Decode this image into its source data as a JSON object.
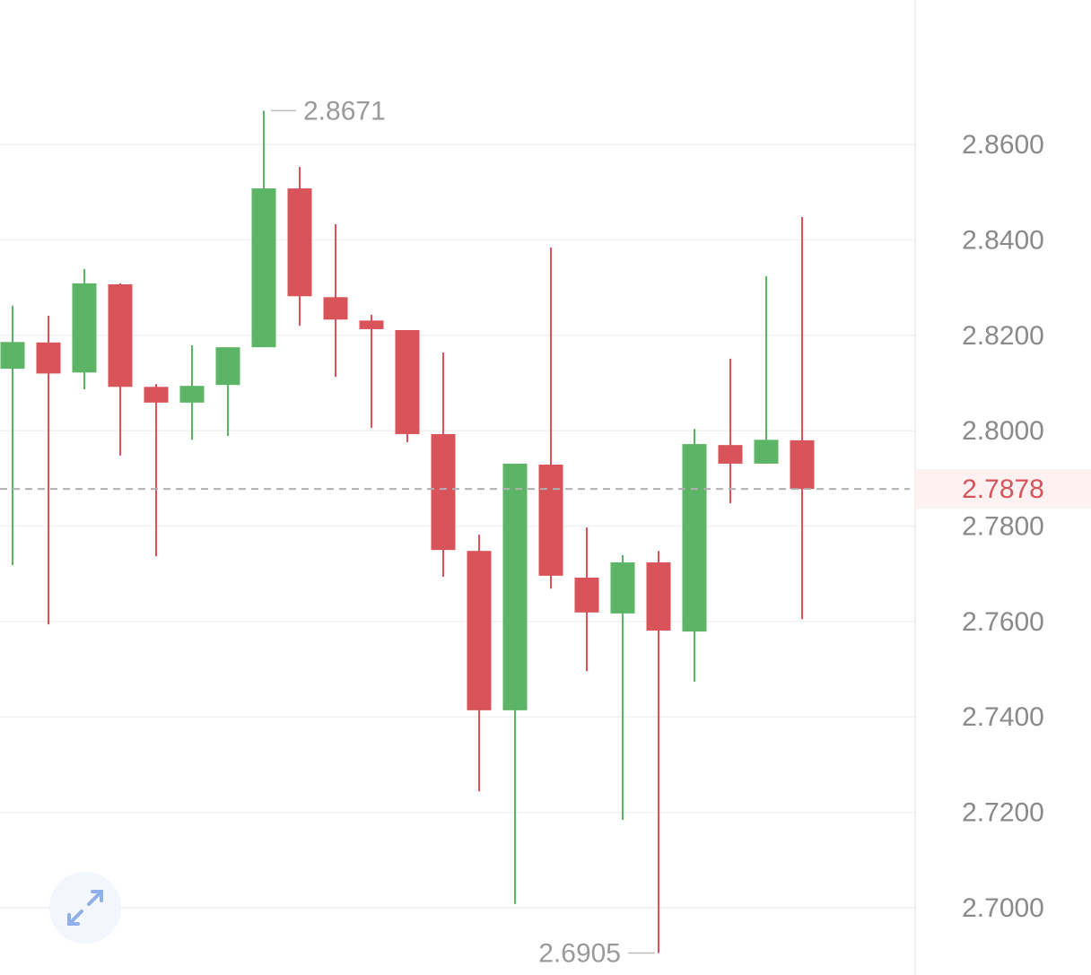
{
  "chart_data": {
    "type": "candlestick",
    "series": [
      {
        "up_color": "#5cb466",
        "down_color": "#d9535b",
        "open": [
          2.813,
          2.8185,
          2.8122,
          2.8307,
          2.8092,
          2.8059,
          2.8096,
          2.8175,
          2.8508,
          2.828,
          2.8231,
          2.8211,
          2.7993,
          2.7748,
          2.7414,
          2.7929,
          2.7692,
          2.7617,
          2.7724,
          2.7579,
          2.797,
          2.7931,
          2.798
        ],
        "high": [
          2.8262,
          2.8241,
          2.8339,
          2.8309,
          2.8098,
          2.8179,
          2.8175,
          2.8671,
          2.8553,
          2.8433,
          2.8243,
          2.8211,
          2.8164,
          2.7782,
          2.7931,
          2.8384,
          2.7797,
          2.7739,
          2.7748,
          2.8004,
          2.8151,
          2.8324,
          2.8448
        ],
        "low": [
          2.7718,
          2.7594,
          2.8087,
          2.7948,
          2.7737,
          2.7981,
          2.7989,
          2.8175,
          2.822,
          2.8113,
          2.8006,
          2.7976,
          2.7694,
          2.7244,
          2.7008,
          2.7669,
          2.7496,
          2.7184,
          2.6905,
          2.7474,
          2.7848,
          2.7931,
          2.7605
        ],
        "close": [
          2.8186,
          2.812,
          2.8309,
          2.8092,
          2.8059,
          2.8094,
          2.8175,
          2.8508,
          2.8282,
          2.8233,
          2.8213,
          2.7993,
          2.775,
          2.7414,
          2.7931,
          2.7696,
          2.7619,
          2.7724,
          2.7581,
          2.7972,
          2.7931,
          2.7981,
          2.7878
        ]
      }
    ],
    "ylim": [
      2.6859,
      2.8903
    ],
    "yticks": [
      {
        "value": 2.86,
        "label": "2.8600"
      },
      {
        "value": 2.84,
        "label": "2.8400"
      },
      {
        "value": 2.82,
        "label": "2.8200"
      },
      {
        "value": 2.8,
        "label": "2.8000"
      },
      {
        "value": 2.78,
        "label": "2.7800"
      },
      {
        "value": 2.76,
        "label": "2.7600"
      },
      {
        "value": 2.74,
        "label": "2.7400"
      },
      {
        "value": 2.72,
        "label": "2.7200"
      },
      {
        "value": 2.7,
        "label": "2.7000"
      }
    ],
    "grid": true,
    "annotations": {
      "max": 2.8671,
      "min": 2.6905,
      "last": 2.7878
    }
  }
}
